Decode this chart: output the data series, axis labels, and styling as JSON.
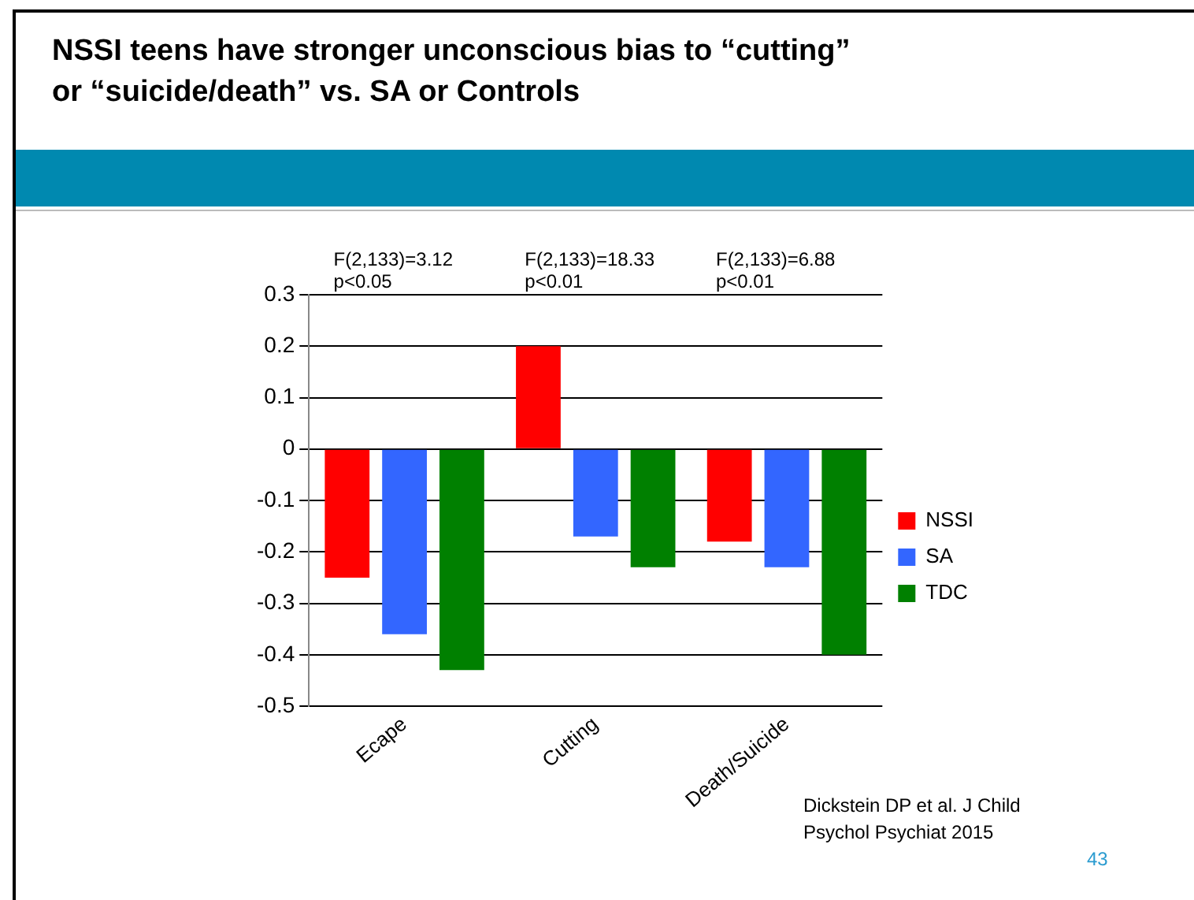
{
  "chart_data": {
    "type": "bar",
    "title": "NSSI teens have stronger unconscious bias to “cutting” or “suicide/death” vs. SA or Controls",
    "categories": [
      "Ecape",
      "Cutting",
      "Death/Suicide"
    ],
    "series": [
      {
        "name": "NSSI",
        "color": "#ff0000",
        "values": [
          -0.25,
          0.2,
          -0.18
        ]
      },
      {
        "name": "SA",
        "color": "#3366ff",
        "values": [
          -0.36,
          -0.17,
          -0.23
        ]
      },
      {
        "name": "TDC",
        "color": "#008000",
        "values": [
          -0.43,
          -0.23,
          -0.4
        ]
      }
    ],
    "ylim": [
      -0.5,
      0.3
    ],
    "yticks": [
      -0.5,
      -0.4,
      -0.3,
      -0.2,
      -0.1,
      0,
      0.1,
      0.2,
      0.3
    ],
    "grid": "y",
    "legend": "right",
    "annotations": [
      "F(2,133)=3.12 p<0.05",
      "F(2,133)=18.33 p<0.01",
      "F(2,133)=6.88 p<0.01",
      "Dickstein DP et al. J Child Psychol Psychiat 2015",
      "43"
    ]
  }
}
